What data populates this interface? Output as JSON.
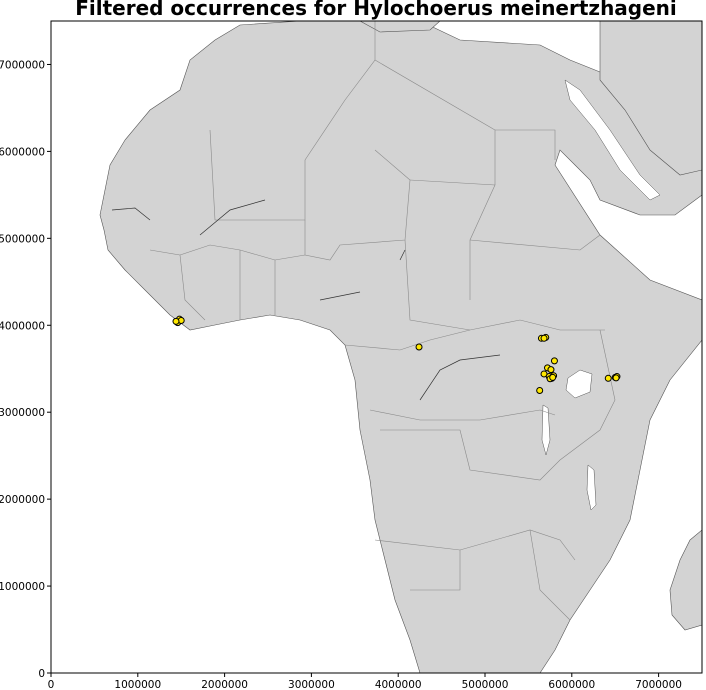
{
  "title": "Filtered occurrences for Hylochoerus meinertzhageni",
  "axes": {
    "xlim": [
      0,
      7500000
    ],
    "ylim": [
      0,
      7500000
    ],
    "x_ticks": [
      0,
      1000000,
      2000000,
      3000000,
      4000000,
      5000000,
      6000000,
      7000000
    ],
    "y_ticks": [
      0,
      1000000,
      2000000,
      3000000,
      4000000,
      5000000,
      6000000,
      7000000
    ],
    "x_tick_labels": [
      "0",
      "1000000",
      "2000000",
      "3000000",
      "4000000",
      "5000000",
      "6000000",
      "7000000"
    ],
    "y_tick_labels": [
      "0",
      "1000000",
      "2000000",
      "3000000",
      "4000000",
      "5000000",
      "6000000",
      "7000000"
    ]
  },
  "colors": {
    "land": "#d3d3d3",
    "water": "#ffffff",
    "marker_fill": "#ffe800",
    "marker_edge": "#000000"
  },
  "occurrences": [
    {
      "x": 1450000,
      "y": 4040000
    },
    {
      "x": 1470000,
      "y": 4050000
    },
    {
      "x": 1490000,
      "y": 4060000
    },
    {
      "x": 1460000,
      "y": 4030000
    },
    {
      "x": 1480000,
      "y": 4070000
    },
    {
      "x": 1500000,
      "y": 4055000
    },
    {
      "x": 1440000,
      "y": 4045000
    },
    {
      "x": 4240000,
      "y": 3750000
    },
    {
      "x": 5650000,
      "y": 3850000
    },
    {
      "x": 5700000,
      "y": 3860000
    },
    {
      "x": 5680000,
      "y": 3850000
    },
    {
      "x": 5800000,
      "y": 3590000
    },
    {
      "x": 5720000,
      "y": 3510000
    },
    {
      "x": 5760000,
      "y": 3490000
    },
    {
      "x": 5680000,
      "y": 3440000
    },
    {
      "x": 5740000,
      "y": 3410000
    },
    {
      "x": 5770000,
      "y": 3390000
    },
    {
      "x": 5790000,
      "y": 3420000
    },
    {
      "x": 5750000,
      "y": 3385000
    },
    {
      "x": 5780000,
      "y": 3400000
    },
    {
      "x": 5630000,
      "y": 3250000
    },
    {
      "x": 6420000,
      "y": 3390000
    },
    {
      "x": 6500000,
      "y": 3400000
    },
    {
      "x": 6520000,
      "y": 3410000
    },
    {
      "x": 6510000,
      "y": 3395000
    }
  ]
}
